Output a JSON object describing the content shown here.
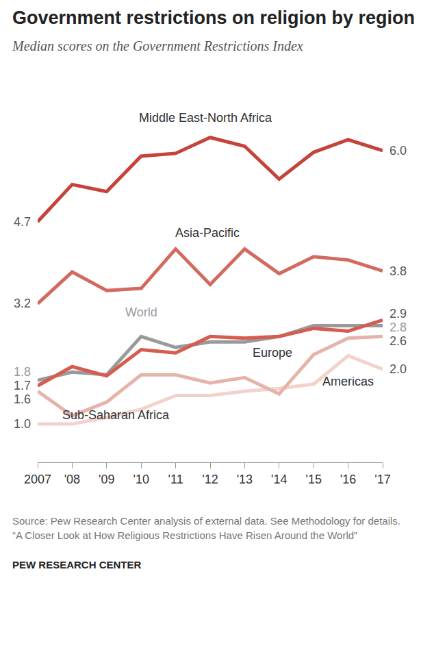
{
  "chart_data": {
    "type": "line",
    "title": "Government restrictions on religion by region",
    "subtitle": "Median scores on the Government Restrictions Index",
    "x": [
      2007,
      2008,
      2009,
      2010,
      2011,
      2012,
      2013,
      2014,
      2015,
      2016,
      2017
    ],
    "xlim": [
      2007,
      2017
    ],
    "xticks": [
      {
        "value": 2007,
        "label": "2007"
      },
      {
        "value": 2008,
        "label": "'08"
      },
      {
        "value": 2009,
        "label": "'09"
      },
      {
        "value": 2010,
        "label": "'10"
      },
      {
        "value": 2011,
        "label": "'11"
      },
      {
        "value": 2012,
        "label": "'12"
      },
      {
        "value": 2013,
        "label": "'13"
      },
      {
        "value": 2014,
        "label": "'14"
      },
      {
        "value": 2015,
        "label": "'15"
      },
      {
        "value": 2016,
        "label": "'16"
      },
      {
        "value": 2017,
        "label": "'17"
      }
    ],
    "ylim": [
      0.3,
      6.5
    ],
    "yticks": [],
    "tick_labels": "x",
    "grid": false,
    "data_labels": true,
    "series": [
      {
        "name": "Americas",
        "color": "#f2d3cc",
        "values": [
          1.0,
          1.0,
          1.12,
          1.27,
          1.52,
          1.52,
          1.6,
          1.65,
          1.73,
          2.25,
          2.0
        ],
        "value_labels": [
          "1.0",
          null,
          null,
          null,
          null,
          null,
          null,
          null,
          null,
          null,
          "2.0"
        ]
      },
      {
        "name": "Sub-Saharan Africa",
        "color": "#e6b3a9",
        "values": [
          1.6,
          1.15,
          1.4,
          1.9,
          1.9,
          1.75,
          1.85,
          1.55,
          2.27,
          2.57,
          2.6
        ],
        "value_labels": [
          "1.6",
          null,
          null,
          null,
          null,
          null,
          null,
          null,
          null,
          null,
          "2.6"
        ]
      },
      {
        "name": "World",
        "color": "#9a9a9a",
        "values": [
          1.8,
          1.95,
          1.9,
          2.6,
          2.4,
          2.5,
          2.5,
          2.6,
          2.8,
          2.8,
          2.8
        ],
        "value_labels": [
          "1.8",
          null,
          null,
          null,
          null,
          null,
          null,
          null,
          null,
          null,
          "2.8"
        ]
      },
      {
        "name": "Europe",
        "color": "#d65b50",
        "values": [
          1.7,
          2.05,
          1.88,
          2.36,
          2.3,
          2.6,
          2.57,
          2.6,
          2.75,
          2.7,
          2.9
        ],
        "value_labels": [
          "1.7",
          null,
          null,
          null,
          null,
          null,
          null,
          null,
          null,
          null,
          "2.9"
        ]
      },
      {
        "name": "Asia-Pacific",
        "color": "#d26a60",
        "values": [
          3.2,
          3.78,
          3.44,
          3.48,
          4.2,
          3.55,
          4.2,
          3.75,
          4.06,
          4.0,
          3.8
        ],
        "value_labels": [
          "3.2",
          null,
          null,
          null,
          null,
          null,
          null,
          null,
          null,
          null,
          "3.8"
        ]
      },
      {
        "name": "Middle East-North Africa",
        "color": "#c5443a",
        "values": [
          4.7,
          5.38,
          5.25,
          5.9,
          5.95,
          6.24,
          6.08,
          5.48,
          5.97,
          6.2,
          6.0
        ],
        "value_labels": [
          "4.7",
          null,
          null,
          null,
          null,
          null,
          null,
          null,
          null,
          null,
          "6.0"
        ]
      }
    ],
    "source": "Source: Pew Research Center analysis of external data. See Methodology for details.",
    "report": "“A Closer Look at How Religious Restrictions Have Risen Around the World”",
    "credit": "PEW RESEARCH CENTER"
  }
}
